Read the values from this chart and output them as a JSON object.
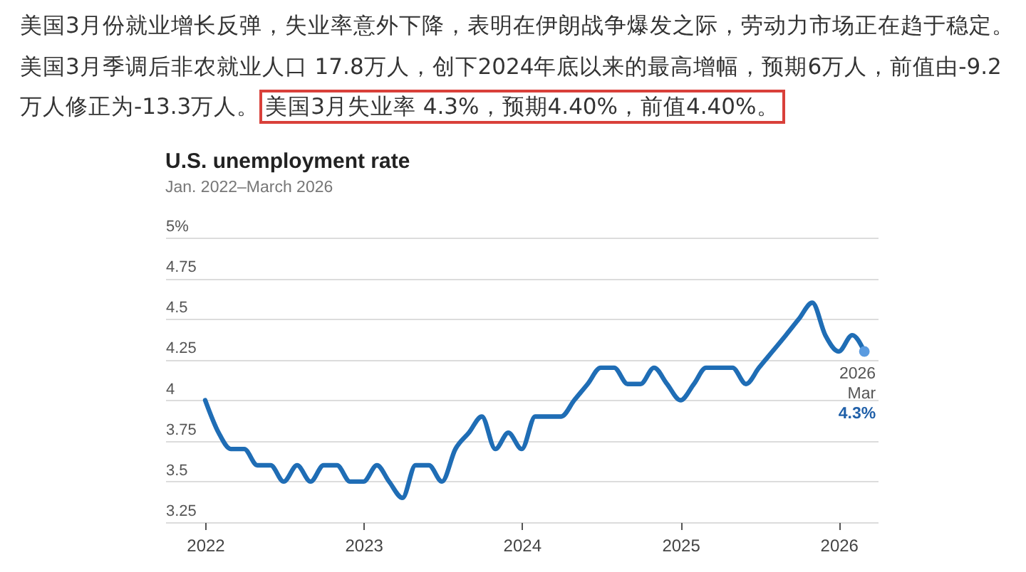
{
  "chart_data": {
    "type": "line",
    "title": "U.S. unemployment rate",
    "subtitle": "Jan. 2022–March 2026",
    "annotations": [
      "美国3月份就业增长反弹，失业率意外下降，表明在伊朗战争爆发之际，劳动力市场正在趋于稳定。美国3月季调后非农就业人口 17.8万人，创下2024年底以来的最高增幅，预期6万人，前值由-9.2万人修正为-13.3万人。",
      "美国3月失业率 4.3%，预期4.40%，前值4.40%。",
      {
        "text": "2026\nMar",
        "x": "2026-03",
        "y": 4.3
      },
      "4.3%"
    ],
    "x": [
      "2022-01",
      "2022-02",
      "2022-03",
      "2022-04",
      "2022-05",
      "2022-06",
      "2022-07",
      "2022-08",
      "2022-09",
      "2022-10",
      "2022-11",
      "2022-12",
      "2023-01",
      "2023-02",
      "2023-03",
      "2023-04",
      "2023-05",
      "2023-06",
      "2023-07",
      "2023-08",
      "2023-09",
      "2023-10",
      "2023-11",
      "2023-12",
      "2024-01",
      "2024-02",
      "2024-03",
      "2024-04",
      "2024-05",
      "2024-06",
      "2024-07",
      "2024-08",
      "2024-09",
      "2024-10",
      "2024-11",
      "2024-12",
      "2025-01",
      "2025-02",
      "2025-03",
      "2025-04",
      "2025-05",
      "2025-06",
      "2025-07",
      "2025-08",
      "2025-09",
      "2025-10",
      "2025-11",
      "2025-12",
      "2026-01",
      "2026-02",
      "2026-03"
    ],
    "series": [
      {
        "color": "#1f6db5",
        "values": [
          4.0,
          3.8,
          3.7,
          3.7,
          3.6,
          3.6,
          3.5,
          3.6,
          3.5,
          3.6,
          3.6,
          3.5,
          3.5,
          3.6,
          3.5,
          3.4,
          3.6,
          3.6,
          3.5,
          3.7,
          3.8,
          3.9,
          3.7,
          3.8,
          3.7,
          3.9,
          3.9,
          3.9,
          4.0,
          4.1,
          4.2,
          4.2,
          4.1,
          4.1,
          4.2,
          4.1,
          4.0,
          4.1,
          4.2,
          4.2,
          4.2,
          4.1,
          4.2,
          4.3,
          4.4,
          4.5,
          4.6,
          4.4,
          4.3,
          4.4,
          4.3
        ]
      }
    ],
    "xlim": [
      "2021-10",
      "2026-04"
    ],
    "xticks": [
      "2022",
      "2023",
      "2024",
      "2025",
      "2026"
    ],
    "ylim": [
      3.25,
      5
    ],
    "yticks": [
      3.25,
      3.5,
      3.75,
      4,
      4.25,
      4.5,
      4.75,
      {
        "value": 5,
        "label": "5%"
      }
    ],
    "grid": "y"
  }
}
